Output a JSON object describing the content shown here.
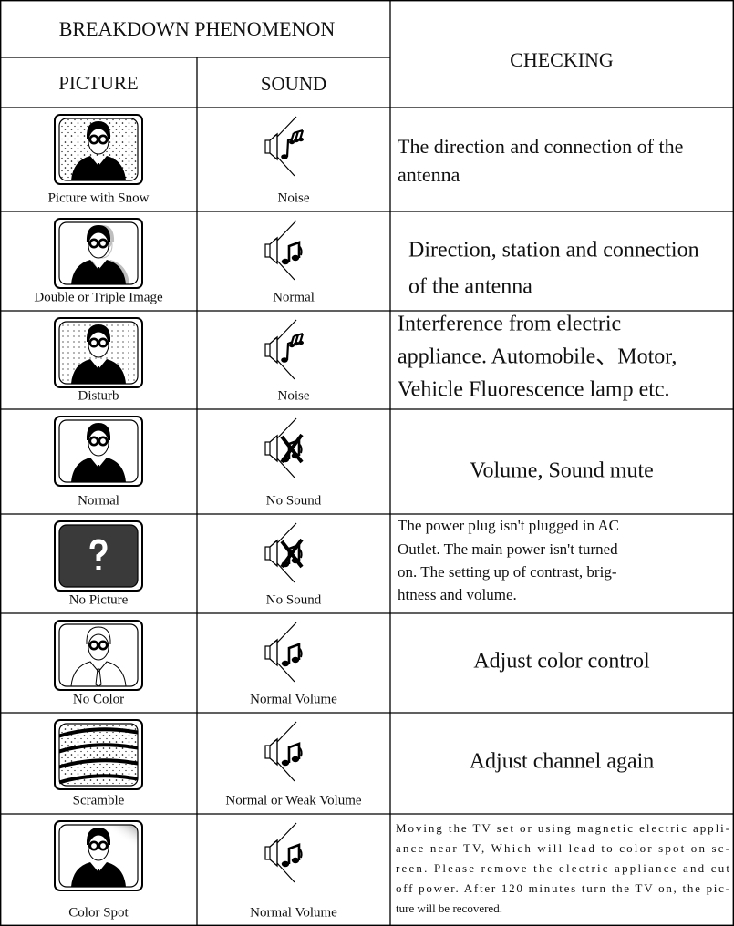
{
  "header": {
    "phenomenon": "BREAKDOWN PHENOMENON",
    "picture": "PICTURE",
    "sound": "SOUND",
    "checking": "CHECKING"
  },
  "table": {
    "rows": [
      {
        "picture": "Picture with Snow",
        "sound": "Noise",
        "checking": [
          "The direction and connection of the",
          "antenna"
        ]
      },
      {
        "picture": "Double or Triple Image",
        "sound": "Normal",
        "checking": [
          "Direction, station and connection",
          "of the antenna"
        ]
      },
      {
        "picture": "Disturb",
        "sound": "Noise",
        "checking": [
          "Interference from electric",
          "appliance. Automobile、Motor,",
          "Vehicle Fluorescence lamp etc."
        ]
      },
      {
        "picture": "Normal",
        "sound": "No Sound",
        "checking": [
          "Volume, Sound mute"
        ]
      },
      {
        "picture": "No Picture",
        "sound": "No Sound",
        "checking": [
          "The power plug isn't plugged in AC",
          "Outlet. The main power isn't turned",
          "on. The setting up of contrast, brig-",
          "htness and volume."
        ]
      },
      {
        "picture": "No Color",
        "sound": "Normal Volume",
        "checking": [
          "Adjust color control"
        ]
      },
      {
        "picture": "Scramble",
        "sound": "Normal or Weak Volume",
        "checking": [
          "Adjust channel again"
        ]
      },
      {
        "picture": "Color Spot",
        "sound": "Normal Volume",
        "checking": [
          "Moving the TV set or using magnetic electric appli-",
          "ance near TV, Which will lead to color spot on sc-",
          "reen. Please remove the electric appliance and cut",
          "off power. After 120 minutes turn the TV on, the pic-",
          "ture will be recovered."
        ]
      }
    ]
  }
}
